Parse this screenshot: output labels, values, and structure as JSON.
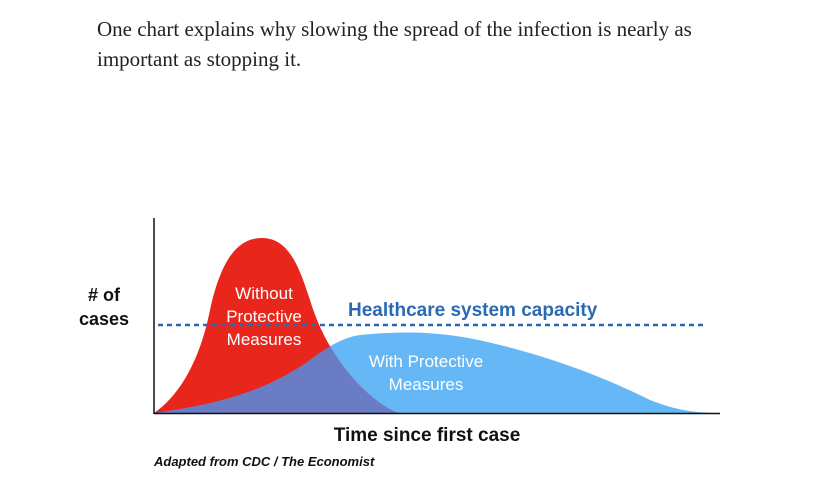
{
  "article": {
    "text": "One chart explains why slowing the spread of the infection is nearly as important as stopping it."
  },
  "chart_data": {
    "type": "area",
    "ylabel_line1": "# of",
    "ylabel_line2": "cases",
    "xlabel": "Time since first case",
    "source": "Adapted from CDC / The Economist",
    "capacity_label": "Healthcare system capacity",
    "capacity_level": 0.5,
    "series": [
      {
        "name_lines": [
          "Without",
          "Protective",
          "Measures"
        ],
        "color": "#e8261c",
        "x": [
          0,
          0.05,
          0.1,
          0.15,
          0.2,
          0.25,
          0.3,
          0.35,
          0.4,
          0.45,
          0.5
        ],
        "y": [
          0,
          0.35,
          0.7,
          0.95,
          1.0,
          0.9,
          0.6,
          0.35,
          0.18,
          0.05,
          0
        ]
      },
      {
        "name_lines": [
          "With Protective",
          "Measures"
        ],
        "color": "#65b8f5",
        "x": [
          0,
          0.1,
          0.2,
          0.3,
          0.35,
          0.4,
          0.5,
          0.6,
          0.7,
          0.8,
          0.9,
          1.0
        ],
        "y": [
          0,
          0.07,
          0.13,
          0.28,
          0.38,
          0.44,
          0.43,
          0.36,
          0.28,
          0.17,
          0.06,
          0
        ]
      }
    ],
    "overlap_color": "#6a7dc4",
    "capacity_color": "#2a6ab5"
  }
}
